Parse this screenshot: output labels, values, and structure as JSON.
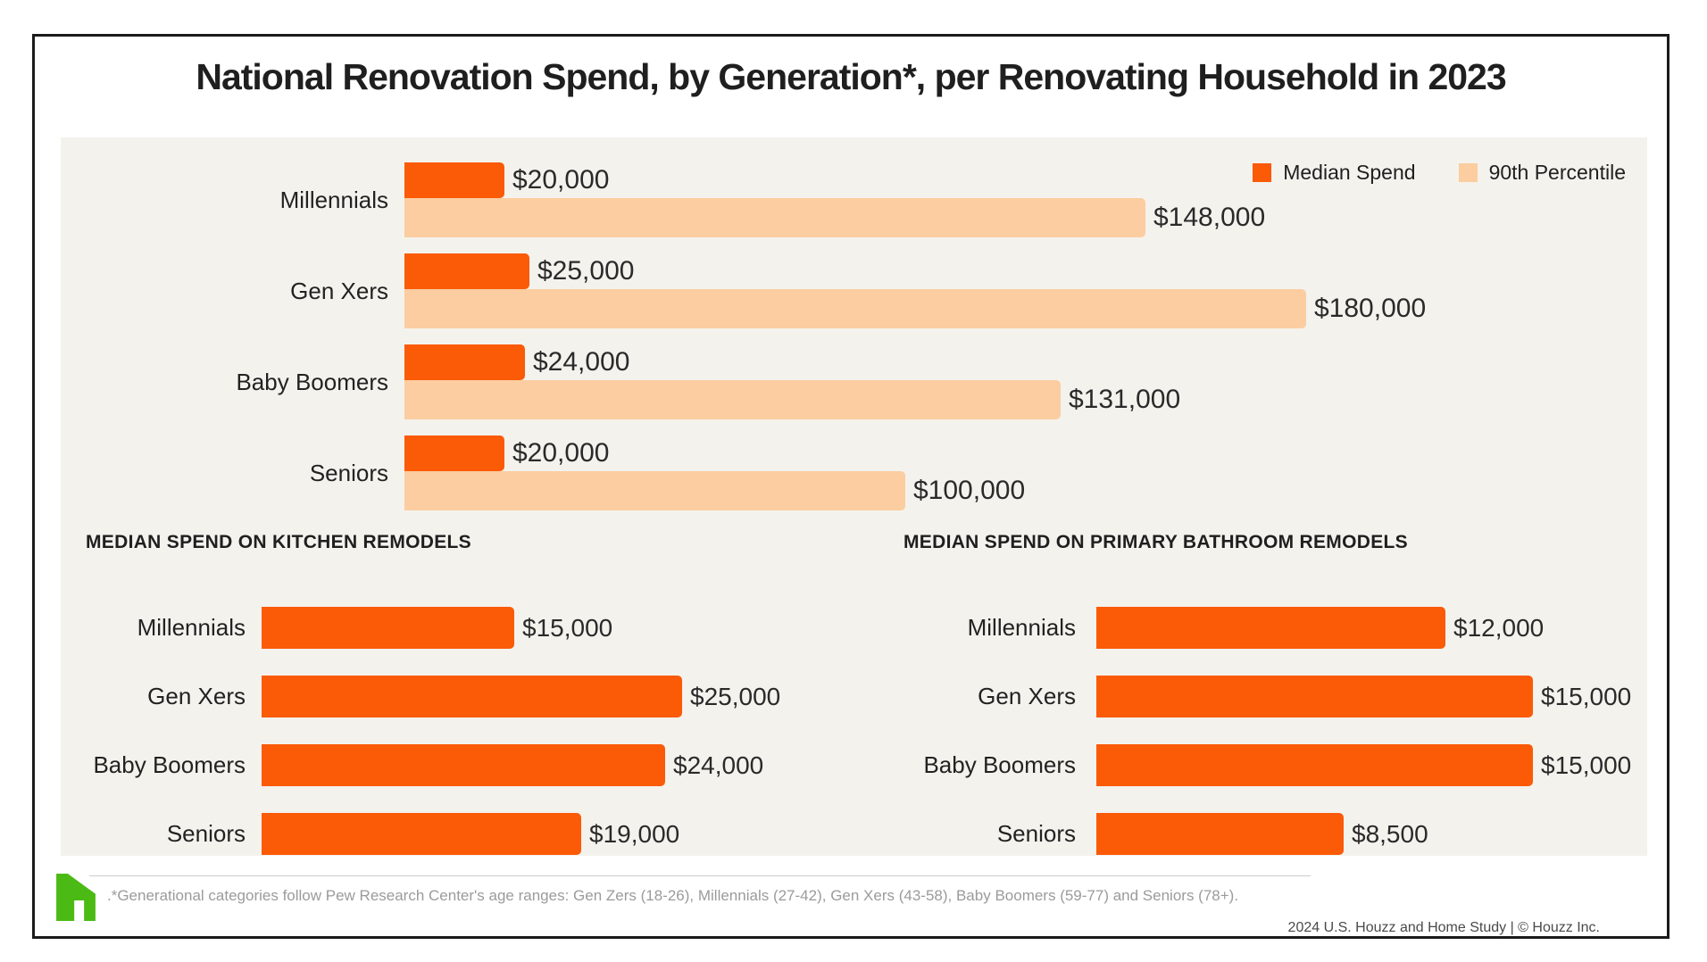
{
  "title": "National Renovation Spend, by Generation*, per Renovating Household in 2023",
  "legend": {
    "median": "Median Spend",
    "percentile": "90th Percentile"
  },
  "colors": {
    "median_orange": "#FB5A07",
    "percentile_peach": "#FBCDA0",
    "panel_background": "#F4F2ED",
    "houzz_green": "#4CBA14"
  },
  "chart_data": [
    {
      "type": "bar",
      "orientation": "horizontal",
      "title": "National Renovation Spend, by Generation*, per Renovating Household in 2023",
      "categories": [
        "Millennials",
        "Gen Xers",
        "Baby Boomers",
        "Seniors"
      ],
      "series": [
        {
          "name": "Median Spend",
          "values": [
            20000,
            25000,
            24000,
            20000
          ],
          "labels": [
            "$20,000",
            "$25,000",
            "$24,000",
            "$20,000"
          ],
          "color": "#FB5A07"
        },
        {
          "name": "90th Percentile",
          "values": [
            148000,
            180000,
            131000,
            100000
          ],
          "labels": [
            "$148,000",
            "$180,000",
            "$131,000",
            "$100,000"
          ],
          "color": "#FBCDA0"
        }
      ],
      "xmax": 180000,
      "legend_position": "top-right",
      "grid": false
    },
    {
      "type": "bar",
      "orientation": "horizontal",
      "title": "MEDIAN SPEND ON KITCHEN REMODELS",
      "categories": [
        "Millennials",
        "Gen Xers",
        "Baby Boomers",
        "Seniors"
      ],
      "values": [
        15000,
        25000,
        24000,
        19000
      ],
      "labels": [
        "$15,000",
        "$25,000",
        "$24,000",
        "$19,000"
      ],
      "xmax": 25000,
      "grid": false
    },
    {
      "type": "bar",
      "orientation": "horizontal",
      "title": "MEDIAN SPEND ON PRIMARY BATHROOM REMODELS",
      "categories": [
        "Millennials",
        "Gen Xers",
        "Baby Boomers",
        "Seniors"
      ],
      "values": [
        12000,
        15000,
        15000,
        8500
      ],
      "labels": [
        "$12,000",
        "$15,000",
        "$15,000",
        "$8,500"
      ],
      "xmax": 15000,
      "grid": false
    }
  ],
  "footer": {
    "footnote": ".*Generational categories follow Pew Research Center's age ranges: Gen Zers (18-26), Millennials (27-42), Gen Xers (43-58), Baby Boomers (59-77) and Seniors (78+).",
    "copyright": "2024 U.S. Houzz and Home  Study | © Houzz Inc."
  }
}
